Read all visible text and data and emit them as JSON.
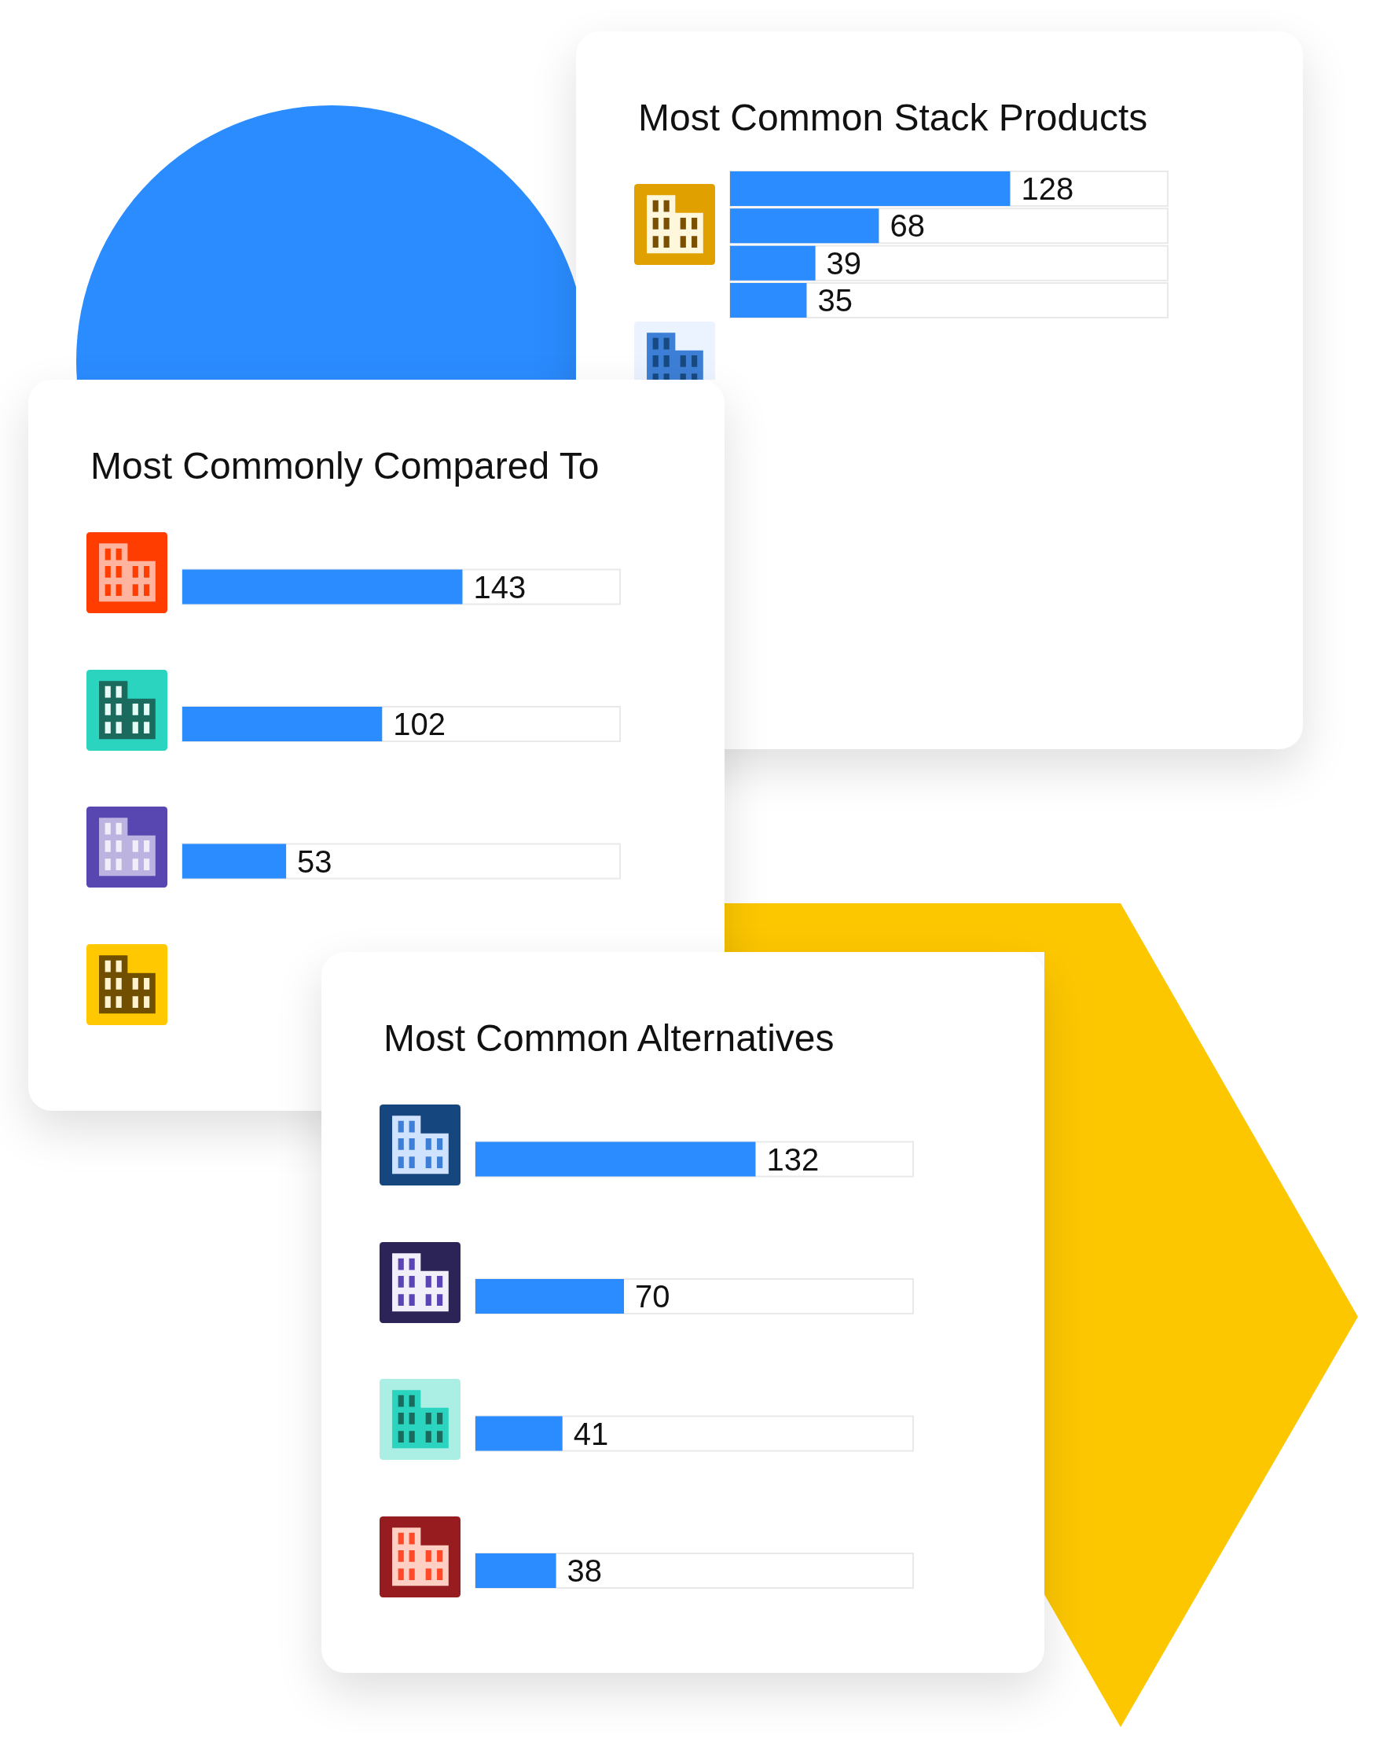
{
  "chart_data": [
    {
      "type": "bar",
      "orientation": "horizontal",
      "title": "Most Common Stack Products",
      "categories": [
        null,
        null,
        null,
        null
      ],
      "values": [
        128,
        68,
        39,
        35
      ],
      "color": "#2b8cff",
      "data_labels": true
    },
    {
      "type": "bar",
      "orientation": "horizontal",
      "title": "Most Commonly Compared To",
      "categories": [
        null,
        null,
        null
      ],
      "values": [
        143,
        102,
        53
      ],
      "color": "#2b8cff",
      "data_labels": true
    },
    {
      "type": "bar",
      "orientation": "horizontal",
      "title": "Most Common Alternatives",
      "categories": [
        null,
        null,
        null,
        null
      ],
      "values": [
        132,
        70,
        41,
        38
      ],
      "color": "#2b8cff",
      "data_labels": true
    }
  ]
}
